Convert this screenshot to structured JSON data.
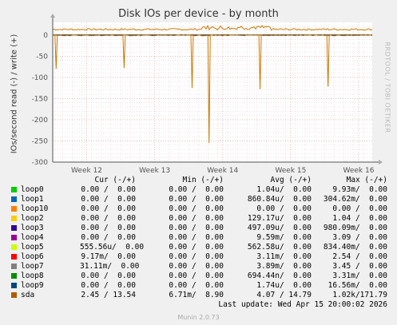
{
  "title": "Disk IOs per device - by month",
  "watermark": "RRDTOOL / TOBI OETIKER",
  "chart_data": {
    "type": "line",
    "ylabel": "IOs/second read (-) / write (+)",
    "ylim": [
      -300,
      30
    ],
    "yticks": [
      0,
      -50,
      -100,
      -150,
      -200,
      -250,
      -300
    ],
    "xticks": [
      "Week 12",
      "Week 13",
      "Week 14",
      "Week 15",
      "Week 16"
    ],
    "grid": true,
    "series": [
      {
        "name": "sda",
        "color": "#CC7700",
        "write_baseline": 13.5,
        "read_dips": [
          {
            "week": 11.55,
            "value": -80
          },
          {
            "week": 12.55,
            "value": -78
          },
          {
            "week": 13.55,
            "value": -125
          },
          {
            "week": 13.8,
            "value": -255
          },
          {
            "week": 14.55,
            "value": -128
          },
          {
            "week": 15.55,
            "value": -122
          }
        ]
      }
    ]
  },
  "legend": {
    "headers": {
      "cur": "Cur (-/+)",
      "min": "Min (-/+)",
      "avg": "Avg (-/+)",
      "max": "Max (-/+)"
    },
    "rows": [
      {
        "name": "loop0",
        "color": "#00CC00",
        "cur": "0.00 /  0.00",
        "min": "0.00 /  0.00",
        "avg": "1.04u/  0.00",
        "max": "9.93m/  0.00"
      },
      {
        "name": "loop1",
        "color": "#0066B3",
        "cur": "0.00 /  0.00",
        "min": "0.00 /  0.00",
        "avg": "860.84u/  0.00",
        "max": "304.62m/  0.00"
      },
      {
        "name": "loop10",
        "color": "#FF8000",
        "cur": "0.00 /  0.00",
        "min": "0.00 /  0.00",
        "avg": "0.00 /  0.00",
        "max": "0.00 /  0.00"
      },
      {
        "name": "loop2",
        "color": "#FFCC00",
        "cur": "0.00 /  0.00",
        "min": "0.00 /  0.00",
        "avg": "129.17u/  0.00",
        "max": "1.04 /  0.00"
      },
      {
        "name": "loop3",
        "color": "#330099",
        "cur": "0.00 /  0.00",
        "min": "0.00 /  0.00",
        "avg": "497.09u/  0.00",
        "max": "980.09m/  0.00"
      },
      {
        "name": "loop4",
        "color": "#990099",
        "cur": "0.00 /  0.00",
        "min": "0.00 /  0.00",
        "avg": "9.59m/  0.00",
        "max": "3.09 /  0.00"
      },
      {
        "name": "loop5",
        "color": "#CCFF00",
        "cur": "555.56u/  0.00",
        "min": "0.00 /  0.00",
        "avg": "562.58u/  0.00",
        "max": "834.40m/  0.00"
      },
      {
        "name": "loop6",
        "color": "#FF0000",
        "cur": "9.17m/  0.00",
        "min": "0.00 /  0.00",
        "avg": "3.11m/  0.00",
        "max": "2.54 /  0.00"
      },
      {
        "name": "loop7",
        "color": "#808080",
        "cur": "31.11m/  0.00",
        "min": "0.00 /  0.00",
        "avg": "3.89m/  0.00",
        "max": "3.45 /  0.00"
      },
      {
        "name": "loop8",
        "color": "#008F00",
        "cur": "0.00 /  0.00",
        "min": "0.00 /  0.00",
        "avg": "694.44n/  0.00",
        "max": "3.31m/  0.00"
      },
      {
        "name": "loop9",
        "color": "#00487D",
        "cur": "0.00 /  0.00",
        "min": "0.00 /  0.00",
        "avg": "1.74u/  0.00",
        "max": "16.56m/  0.00"
      },
      {
        "name": "sda",
        "color": "#B35A00",
        "cur": "2.45 / 13.54",
        "min": "6.71m/  8.90",
        "avg": "4.07 / 14.79",
        "max": "1.02k/171.79"
      }
    ]
  },
  "last_update": "Last update: Wed Apr 15 20:00:02 2026",
  "footer": "Munin 2.0.73"
}
